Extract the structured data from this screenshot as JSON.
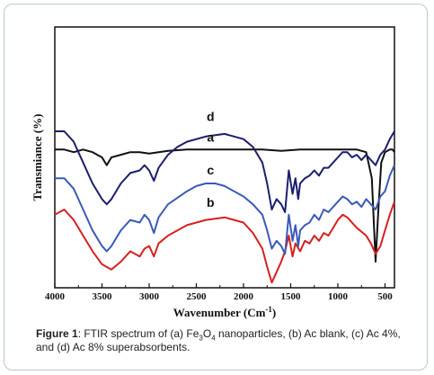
{
  "chart_data": {
    "type": "line",
    "xlabel": "Wavenumber (Cm",
    "xlabel_sup": "-1",
    "xlabel_close": ")",
    "ylabel": "Transmiance (%)",
    "xlim": [
      4000,
      400
    ],
    "x_reversed": true,
    "xticks": [
      "4000",
      "3500",
      "3000",
      "2500",
      "2000",
      "1500",
      "1000",
      "500"
    ],
    "grid": false,
    "legend": "none",
    "series": [
      {
        "label": "a",
        "color": "#111111",
        "points": [
          [
            4000,
            0.47
          ],
          [
            3900,
            0.47
          ],
          [
            3800,
            0.48
          ],
          [
            3700,
            0.47
          ],
          [
            3600,
            0.48
          ],
          [
            3500,
            0.5
          ],
          [
            3450,
            0.53
          ],
          [
            3400,
            0.5
          ],
          [
            3300,
            0.49
          ],
          [
            3200,
            0.48
          ],
          [
            3100,
            0.48
          ],
          [
            3000,
            0.485
          ],
          [
            2900,
            0.48
          ],
          [
            2800,
            0.475
          ],
          [
            2600,
            0.47
          ],
          [
            2400,
            0.47
          ],
          [
            2200,
            0.47
          ],
          [
            2000,
            0.47
          ],
          [
            1800,
            0.47
          ],
          [
            1600,
            0.475
          ],
          [
            1400,
            0.47
          ],
          [
            1200,
            0.47
          ],
          [
            1000,
            0.47
          ],
          [
            900,
            0.47
          ],
          [
            800,
            0.47
          ],
          [
            700,
            0.48
          ],
          [
            640,
            0.58
          ],
          [
            600,
            0.9
          ],
          [
            570,
            0.7
          ],
          [
            540,
            0.52
          ],
          [
            500,
            0.48
          ],
          [
            450,
            0.47
          ],
          [
            420,
            0.47
          ],
          [
            400,
            0.48
          ]
        ]
      },
      {
        "label": "b",
        "color": "#d62020",
        "points": [
          [
            4000,
            0.72
          ],
          [
            3900,
            0.7
          ],
          [
            3800,
            0.74
          ],
          [
            3700,
            0.8
          ],
          [
            3600,
            0.86
          ],
          [
            3500,
            0.91
          ],
          [
            3400,
            0.93
          ],
          [
            3300,
            0.9
          ],
          [
            3200,
            0.86
          ],
          [
            3100,
            0.88
          ],
          [
            3050,
            0.85
          ],
          [
            3000,
            0.84
          ],
          [
            2950,
            0.88
          ],
          [
            2900,
            0.83
          ],
          [
            2800,
            0.8
          ],
          [
            2600,
            0.76
          ],
          [
            2400,
            0.74
          ],
          [
            2200,
            0.73
          ],
          [
            2000,
            0.75
          ],
          [
            1900,
            0.79
          ],
          [
            1800,
            0.85
          ],
          [
            1750,
            0.92
          ],
          [
            1700,
            0.98
          ],
          [
            1650,
            0.94
          ],
          [
            1600,
            0.9
          ],
          [
            1560,
            0.86
          ],
          [
            1520,
            0.8
          ],
          [
            1480,
            0.88
          ],
          [
            1450,
            0.83
          ],
          [
            1400,
            0.86
          ],
          [
            1350,
            0.82
          ],
          [
            1300,
            0.83
          ],
          [
            1250,
            0.8
          ],
          [
            1200,
            0.82
          ],
          [
            1150,
            0.79
          ],
          [
            1100,
            0.8
          ],
          [
            1050,
            0.77
          ],
          [
            1000,
            0.74
          ],
          [
            950,
            0.72
          ],
          [
            900,
            0.73
          ],
          [
            800,
            0.77
          ],
          [
            700,
            0.8
          ],
          [
            650,
            0.83
          ],
          [
            600,
            0.87
          ],
          [
            550,
            0.84
          ],
          [
            500,
            0.78
          ],
          [
            450,
            0.72
          ],
          [
            420,
            0.69
          ],
          [
            400,
            0.67
          ]
        ]
      },
      {
        "label": "c",
        "color": "#3a5ab8",
        "points": [
          [
            4000,
            0.58
          ],
          [
            3900,
            0.58
          ],
          [
            3800,
            0.62
          ],
          [
            3700,
            0.7
          ],
          [
            3600,
            0.78
          ],
          [
            3500,
            0.84
          ],
          [
            3450,
            0.86
          ],
          [
            3400,
            0.84
          ],
          [
            3300,
            0.78
          ],
          [
            3200,
            0.74
          ],
          [
            3100,
            0.75
          ],
          [
            3050,
            0.72
          ],
          [
            3000,
            0.74
          ],
          [
            2950,
            0.79
          ],
          [
            2900,
            0.73
          ],
          [
            2800,
            0.68
          ],
          [
            2600,
            0.63
          ],
          [
            2500,
            0.61
          ],
          [
            2400,
            0.6
          ],
          [
            2300,
            0.6
          ],
          [
            2200,
            0.61
          ],
          [
            2000,
            0.65
          ],
          [
            1900,
            0.68
          ],
          [
            1800,
            0.72
          ],
          [
            1750,
            0.78
          ],
          [
            1700,
            0.85
          ],
          [
            1650,
            0.82
          ],
          [
            1600,
            0.84
          ],
          [
            1560,
            0.87
          ],
          [
            1520,
            0.72
          ],
          [
            1480,
            0.82
          ],
          [
            1450,
            0.76
          ],
          [
            1420,
            0.84
          ],
          [
            1400,
            0.78
          ],
          [
            1350,
            0.76
          ],
          [
            1300,
            0.75
          ],
          [
            1250,
            0.72
          ],
          [
            1200,
            0.74
          ],
          [
            1150,
            0.7
          ],
          [
            1100,
            0.71
          ],
          [
            1000,
            0.67
          ],
          [
            950,
            0.65
          ],
          [
            900,
            0.66
          ],
          [
            850,
            0.68
          ],
          [
            800,
            0.67
          ],
          [
            750,
            0.69
          ],
          [
            700,
            0.66
          ],
          [
            650,
            0.68
          ],
          [
            600,
            0.7
          ],
          [
            550,
            0.65
          ],
          [
            500,
            0.63
          ],
          [
            450,
            0.57
          ],
          [
            400,
            0.53
          ]
        ]
      },
      {
        "label": "d",
        "color": "#1c1e6e",
        "points": [
          [
            4000,
            0.4
          ],
          [
            3900,
            0.4
          ],
          [
            3800,
            0.44
          ],
          [
            3700,
            0.52
          ],
          [
            3600,
            0.6
          ],
          [
            3500,
            0.66
          ],
          [
            3450,
            0.68
          ],
          [
            3400,
            0.66
          ],
          [
            3300,
            0.6
          ],
          [
            3200,
            0.56
          ],
          [
            3100,
            0.55
          ],
          [
            3050,
            0.53
          ],
          [
            3000,
            0.55
          ],
          [
            2950,
            0.59
          ],
          [
            2900,
            0.54
          ],
          [
            2800,
            0.49
          ],
          [
            2700,
            0.46
          ],
          [
            2600,
            0.44
          ],
          [
            2400,
            0.42
          ],
          [
            2200,
            0.41
          ],
          [
            2000,
            0.43
          ],
          [
            1900,
            0.46
          ],
          [
            1800,
            0.52
          ],
          [
            1750,
            0.6
          ],
          [
            1700,
            0.7
          ],
          [
            1650,
            0.66
          ],
          [
            1600,
            0.68
          ],
          [
            1560,
            0.71
          ],
          [
            1520,
            0.55
          ],
          [
            1480,
            0.64
          ],
          [
            1450,
            0.58
          ],
          [
            1420,
            0.66
          ],
          [
            1400,
            0.6
          ],
          [
            1350,
            0.58
          ],
          [
            1300,
            0.57
          ],
          [
            1250,
            0.55
          ],
          [
            1200,
            0.57
          ],
          [
            1150,
            0.54
          ],
          [
            1100,
            0.54
          ],
          [
            1000,
            0.5
          ],
          [
            950,
            0.48
          ],
          [
            900,
            0.48
          ],
          [
            850,
            0.5
          ],
          [
            800,
            0.49
          ],
          [
            750,
            0.51
          ],
          [
            700,
            0.49
          ],
          [
            650,
            0.51
          ],
          [
            600,
            0.53
          ],
          [
            550,
            0.49
          ],
          [
            500,
            0.47
          ],
          [
            450,
            0.43
          ],
          [
            400,
            0.4
          ]
        ]
      }
    ],
    "annotations": [
      {
        "text": "d",
        "x": 2350,
        "y": 0.36
      },
      {
        "text": "c",
        "x": 2350,
        "y": 0.565
      },
      {
        "text": "b",
        "x": 2350,
        "y": 0.69
      },
      {
        "text": "a",
        "x": 2350,
        "y": 0.44
      }
    ]
  },
  "caption": {
    "label": "Figure 1",
    "part1": ": FTIR spectrum of (a) Fe",
    "sub1": "3",
    "part2": "O",
    "sub2": "4",
    "part3": " nanoparticles, (b) Ac blank, (c) Ac 4%, and (d) Ac 8% superabsorbents."
  }
}
